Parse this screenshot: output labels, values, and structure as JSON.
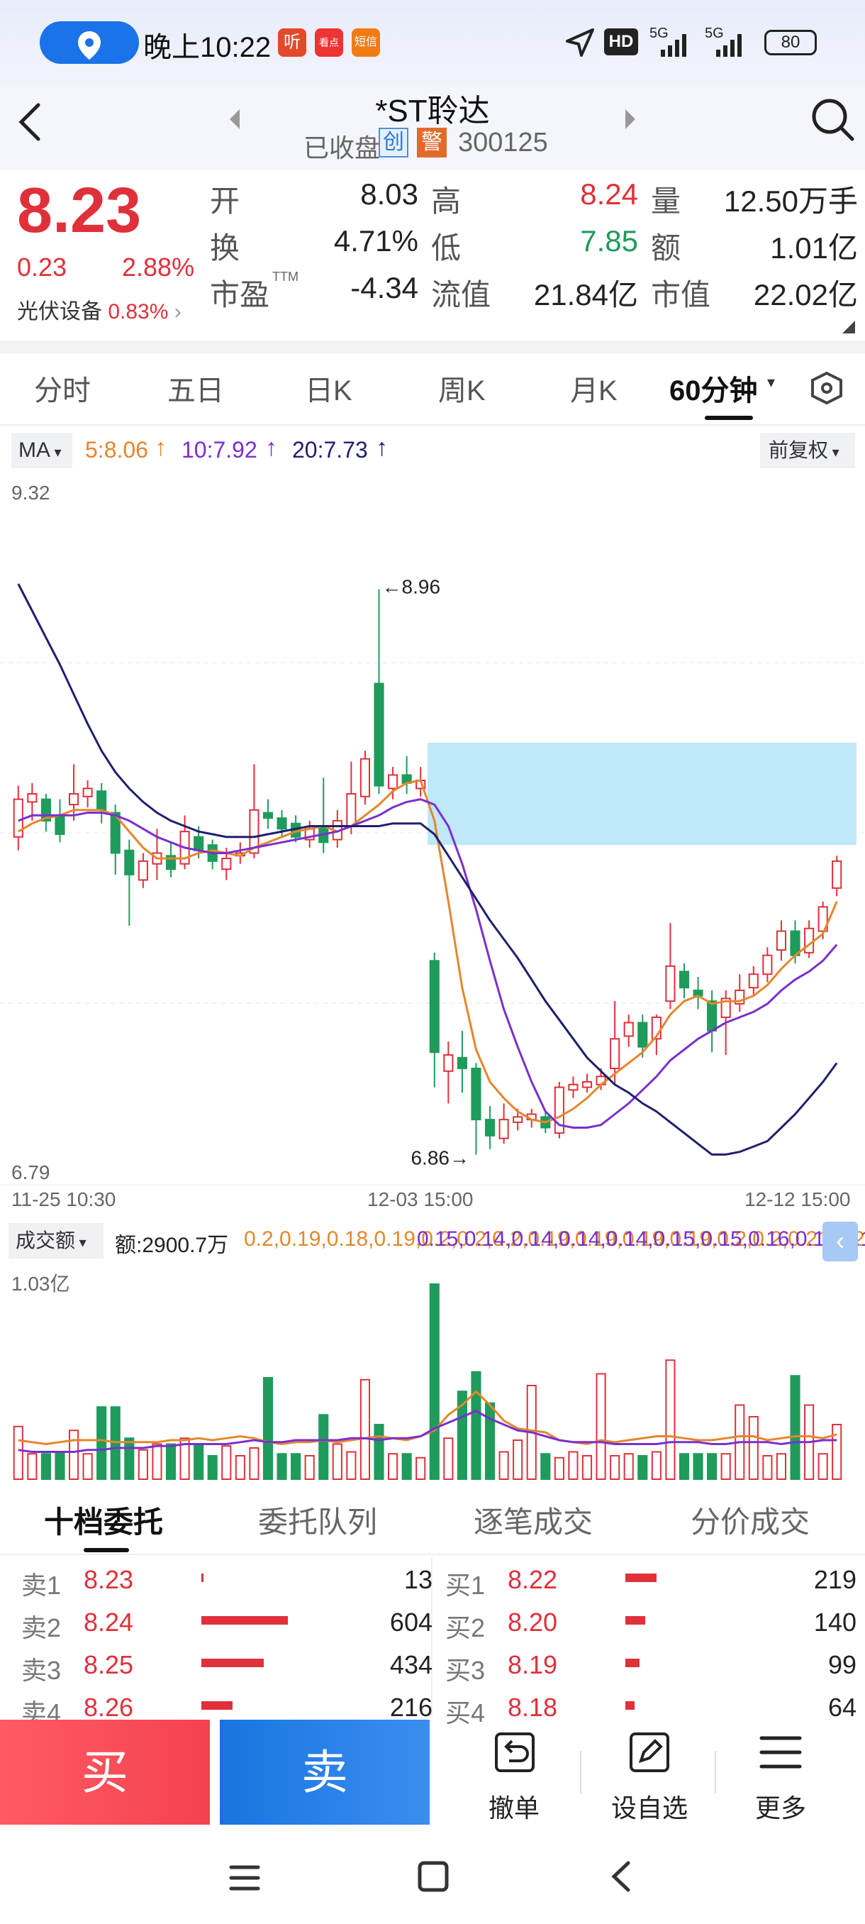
{
  "status": {
    "time": "晚上10:22",
    "hd": "HD",
    "net1": "5G",
    "net2": "5G",
    "battery": "80",
    "app_badges": [
      "听",
      "看点",
      "短信"
    ]
  },
  "header": {
    "title": "*ST聆达",
    "market_state": "已收盘",
    "tag_chuang": "创",
    "tag_warn": "警",
    "code": "300125"
  },
  "quote": {
    "price": "8.23",
    "change": "0.23",
    "change_pct": "2.88%",
    "sector_name": "光伏设备",
    "sector_pct": "0.83%",
    "rows": [
      {
        "l1": "开",
        "v1": "8.03",
        "l2": "高",
        "v2": "8.24",
        "l3": "量",
        "v3": "12.50万手"
      },
      {
        "l1": "换",
        "v1": "4.71%",
        "l2": "低",
        "v2": "7.85",
        "l3": "额",
        "v3": "1.01亿"
      },
      {
        "l1": "市盈",
        "sup": "TTM",
        "v1": "-4.34",
        "l2": "流值",
        "v2": "21.84亿",
        "l3": "市值",
        "v3": "22.02亿"
      }
    ]
  },
  "tabs": [
    "分时",
    "五日",
    "日K",
    "周K",
    "月K",
    "60分钟"
  ],
  "active_tab": "60分钟",
  "ma": {
    "label": "MA",
    "ma5": "5:8.06",
    "ma10": "10:7.92",
    "ma20": "20:7.73",
    "adjust": "前复权"
  },
  "chart_data": {
    "type": "candlestick",
    "interval": "60分钟",
    "ylim": [
      6.79,
      9.32
    ],
    "y_max_label": "9.32",
    "y_min_label": "6.79",
    "high_marker": "8.96",
    "low_marker": "6.86",
    "x_labels": [
      "11-25 10:30",
      "12-03 15:00",
      "12-12 15:00"
    ],
    "candles": [
      {
        "o": 8.04,
        "c": 8.18,
        "h": 8.23,
        "l": 7.99
      },
      {
        "o": 8.17,
        "c": 8.2,
        "h": 8.24,
        "l": 8.1
      },
      {
        "o": 8.18,
        "c": 8.1,
        "h": 8.2,
        "l": 8.06
      },
      {
        "o": 8.12,
        "c": 8.05,
        "h": 8.18,
        "l": 8.02
      },
      {
        "o": 8.16,
        "c": 8.2,
        "h": 8.31,
        "l": 8.1
      },
      {
        "o": 8.19,
        "c": 8.22,
        "h": 8.25,
        "l": 8.15
      },
      {
        "o": 8.21,
        "c": 8.14,
        "h": 8.24,
        "l": 8.09
      },
      {
        "o": 8.13,
        "c": 7.98,
        "h": 8.16,
        "l": 7.9
      },
      {
        "o": 7.99,
        "c": 7.9,
        "h": 8.03,
        "l": 7.71
      },
      {
        "o": 7.88,
        "c": 7.95,
        "h": 7.98,
        "l": 7.85
      },
      {
        "o": 7.94,
        "c": 7.98,
        "h": 8.07,
        "l": 7.88
      },
      {
        "o": 7.97,
        "c": 7.92,
        "h": 8.02,
        "l": 7.89
      },
      {
        "o": 7.94,
        "c": 8.06,
        "h": 8.12,
        "l": 7.92
      },
      {
        "o": 8.04,
        "c": 7.99,
        "h": 8.08,
        "l": 7.96
      },
      {
        "o": 8.01,
        "c": 7.95,
        "h": 8.03,
        "l": 7.92
      },
      {
        "o": 7.92,
        "c": 7.96,
        "h": 8.0,
        "l": 7.88
      },
      {
        "o": 7.97,
        "c": 7.98,
        "h": 8.02,
        "l": 7.94
      },
      {
        "o": 7.98,
        "c": 8.14,
        "h": 8.31,
        "l": 7.96
      },
      {
        "o": 8.13,
        "c": 8.11,
        "h": 8.18,
        "l": 8.07
      },
      {
        "o": 8.11,
        "c": 8.07,
        "h": 8.14,
        "l": 8.04
      },
      {
        "o": 8.09,
        "c": 8.04,
        "h": 8.12,
        "l": 8.02
      },
      {
        "o": 8.03,
        "c": 8.07,
        "h": 8.1,
        "l": 8.0
      },
      {
        "o": 8.08,
        "c": 8.02,
        "h": 8.26,
        "l": 7.98
      },
      {
        "o": 8.03,
        "c": 8.1,
        "h": 8.14,
        "l": 8.0
      },
      {
        "o": 8.08,
        "c": 8.2,
        "h": 8.32,
        "l": 8.05
      },
      {
        "o": 8.19,
        "c": 8.33,
        "h": 8.36,
        "l": 8.16
      },
      {
        "o": 8.61,
        "c": 8.23,
        "h": 8.96,
        "l": 8.2
      },
      {
        "o": 8.22,
        "c": 8.27,
        "h": 8.3,
        "l": 8.18
      },
      {
        "o": 8.27,
        "c": 8.24,
        "h": 8.34,
        "l": 8.2
      },
      {
        "o": 8.22,
        "c": 8.25,
        "h": 8.3,
        "l": 8.19
      },
      {
        "o": 7.58,
        "c": 7.24,
        "h": 7.61,
        "l": 7.11
      },
      {
        "o": 7.17,
        "c": 7.23,
        "h": 7.28,
        "l": 7.05
      },
      {
        "o": 7.22,
        "c": 7.18,
        "h": 7.32,
        "l": 7.09
      },
      {
        "o": 7.18,
        "c": 6.99,
        "h": 7.2,
        "l": 6.86
      },
      {
        "o": 6.99,
        "c": 6.93,
        "h": 7.04,
        "l": 6.88
      },
      {
        "o": 6.92,
        "c": 6.99,
        "h": 7.05,
        "l": 6.9
      },
      {
        "o": 6.98,
        "c": 7.0,
        "h": 7.03,
        "l": 6.95
      },
      {
        "o": 6.99,
        "c": 7.01,
        "h": 7.03,
        "l": 6.96
      },
      {
        "o": 7.0,
        "c": 6.96,
        "h": 7.02,
        "l": 6.94
      },
      {
        "o": 6.94,
        "c": 7.11,
        "h": 7.13,
        "l": 6.92
      },
      {
        "o": 7.1,
        "c": 7.12,
        "h": 7.15,
        "l": 7.07
      },
      {
        "o": 7.11,
        "c": 7.13,
        "h": 7.16,
        "l": 7.09
      },
      {
        "o": 7.12,
        "c": 7.15,
        "h": 7.18,
        "l": 7.1
      },
      {
        "o": 7.18,
        "c": 7.29,
        "h": 7.43,
        "l": 7.12
      },
      {
        "o": 7.3,
        "c": 7.35,
        "h": 7.38,
        "l": 7.26
      },
      {
        "o": 7.35,
        "c": 7.26,
        "h": 7.38,
        "l": 7.22
      },
      {
        "o": 7.29,
        "c": 7.37,
        "h": 7.38,
        "l": 7.23
      },
      {
        "o": 7.43,
        "c": 7.56,
        "h": 7.72,
        "l": 7.4
      },
      {
        "o": 7.54,
        "c": 7.48,
        "h": 7.57,
        "l": 7.44
      },
      {
        "o": 7.47,
        "c": 7.45,
        "h": 7.52,
        "l": 7.4
      },
      {
        "o": 7.43,
        "c": 7.32,
        "h": 7.47,
        "l": 7.24
      },
      {
        "o": 7.37,
        "c": 7.44,
        "h": 7.47,
        "l": 7.23
      },
      {
        "o": 7.42,
        "c": 7.47,
        "h": 7.53,
        "l": 7.39
      },
      {
        "o": 7.48,
        "c": 7.53,
        "h": 7.56,
        "l": 7.45
      },
      {
        "o": 7.53,
        "c": 7.6,
        "h": 7.63,
        "l": 7.5
      },
      {
        "o": 7.62,
        "c": 7.69,
        "h": 7.73,
        "l": 7.58
      },
      {
        "o": 7.69,
        "c": 7.6,
        "h": 7.73,
        "l": 7.57
      },
      {
        "o": 7.61,
        "c": 7.7,
        "h": 7.73,
        "l": 7.59
      },
      {
        "o": 7.69,
        "c": 7.78,
        "h": 7.8,
        "l": 7.66
      },
      {
        "o": 7.85,
        "c": 7.95,
        "h": 7.97,
        "l": 7.82
      }
    ],
    "ma_series": [
      {
        "name": "5",
        "color": "#e5862b",
        "values": [
          8.06,
          8.09,
          8.11,
          8.12,
          8.14,
          8.14,
          8.14,
          8.12,
          8.06,
          8.0,
          7.96,
          7.96,
          7.96,
          7.98,
          7.99,
          7.98,
          7.97,
          8.0,
          8.02,
          8.04,
          8.06,
          8.07,
          8.08,
          8.06,
          8.08,
          8.12,
          8.16,
          8.21,
          8.24,
          8.25,
          8.1,
          7.8,
          7.48,
          7.25,
          7.13,
          7.07,
          7.02,
          6.99,
          6.98,
          7.0,
          7.03,
          7.07,
          7.12,
          7.16,
          7.2,
          7.24,
          7.3,
          7.38,
          7.43,
          7.45,
          7.42,
          7.43,
          7.43,
          7.45,
          7.49,
          7.55,
          7.6,
          7.64,
          7.68,
          7.8
        ]
      },
      {
        "name": "10",
        "color": "#7a2fd0",
        "values": [
          8.1,
          8.12,
          8.12,
          8.12,
          8.12,
          8.13,
          8.13,
          8.12,
          8.1,
          8.07,
          8.04,
          8.02,
          8.0,
          7.99,
          7.98,
          7.98,
          7.99,
          8.0,
          8.01,
          8.02,
          8.03,
          8.04,
          8.05,
          8.06,
          8.08,
          8.1,
          8.12,
          8.15,
          8.17,
          8.18,
          8.16,
          8.08,
          7.94,
          7.77,
          7.58,
          7.4,
          7.26,
          7.13,
          7.02,
          6.97,
          6.96,
          6.96,
          6.97,
          7.01,
          7.05,
          7.1,
          7.15,
          7.21,
          7.25,
          7.29,
          7.32,
          7.35,
          7.37,
          7.39,
          7.42,
          7.47,
          7.51,
          7.54,
          7.58,
          7.64
        ]
      },
      {
        "name": "20",
        "color": "#1f1f6e",
        "values": [
          8.98,
          8.88,
          8.78,
          8.68,
          8.57,
          8.46,
          8.36,
          8.28,
          8.22,
          8.17,
          8.13,
          8.1,
          8.08,
          8.06,
          8.05,
          8.04,
          8.04,
          8.04,
          8.05,
          8.06,
          8.07,
          8.08,
          8.08,
          8.08,
          8.08,
          8.08,
          8.08,
          8.09,
          8.09,
          8.09,
          8.05,
          7.97,
          7.89,
          7.81,
          7.73,
          7.66,
          7.59,
          7.51,
          7.43,
          7.36,
          7.29,
          7.22,
          7.17,
          7.12,
          7.09,
          7.05,
          7.02,
          6.98,
          6.94,
          6.9,
          6.86,
          6.86,
          6.87,
          6.89,
          6.91,
          6.96,
          7.01,
          7.07,
          7.13,
          7.2
        ]
      }
    ],
    "highlight_zone": {
      "from_index": 30,
      "y_range": [
        8.01,
        8.39
      ],
      "color": "#bfe8f8"
    }
  },
  "volume": {
    "label": "成交额",
    "amount": "额:2900.7万",
    "ma5": [
      0.2,
      0.19,
      0.18,
      0.19,
      0.2,
      0.2,
      0.2,
      0.19,
      0.19,
      0.19,
      0.19,
      0.2,
      0.2,
      0.21,
      0.2,
      0.21,
      0.22,
      0.21,
      0.19,
      0.18,
      0.19,
      0.19,
      0.2,
      0.19,
      0.2,
      0.21,
      0.22,
      0.21,
      0.2,
      0.22,
      0.25,
      0.33,
      0.38,
      0.45,
      0.38,
      0.3,
      0.26,
      0.25,
      0.24,
      0.2,
      0.19,
      0.18,
      0.2,
      0.19,
      0.2,
      0.21,
      0.22,
      0.22,
      0.21,
      0.2,
      0.2,
      0.21,
      0.22,
      0.22,
      0.2,
      0.21,
      0.22,
      0.22,
      0.21,
      0.23
    ],
    "ma10": [
      0.15,
      0.14,
      0.14,
      0.14,
      0.14,
      0.15,
      0.15,
      0.16,
      0.16,
      0.16,
      0.17,
      0.17,
      0.18,
      0.18,
      0.18,
      0.18,
      0.19,
      0.2,
      0.19,
      0.19,
      0.2,
      0.2,
      0.2,
      0.2,
      0.21,
      0.21,
      0.2,
      0.21,
      0.21,
      0.22,
      0.26,
      0.29,
      0.32,
      0.35,
      0.31,
      0.28,
      0.25,
      0.24,
      0.22,
      0.2,
      0.19,
      0.19,
      0.19,
      0.18,
      0.18,
      0.18,
      0.18,
      0.19,
      0.19,
      0.19,
      0.18,
      0.18,
      0.19,
      0.19,
      0.19,
      0.18,
      0.19,
      0.19,
      0.2,
      0.2
    ],
    "max_label": "1.03亿",
    "bars": [
      0.27,
      0.13,
      0.13,
      0.14,
      0.25,
      0.13,
      0.37,
      0.37,
      0.21,
      0.15,
      0.18,
      0.18,
      0.21,
      0.18,
      0.12,
      0.17,
      0.12,
      0.16,
      0.52,
      0.13,
      0.13,
      0.12,
      0.33,
      0.18,
      0.14,
      0.51,
      0.28,
      0.13,
      0.13,
      0.11,
      1.0,
      0.21,
      0.45,
      0.55,
      0.39,
      0.14,
      0.2,
      0.48,
      0.13,
      0.11,
      0.14,
      0.12,
      0.54,
      0.12,
      0.13,
      0.12,
      0.14,
      0.61,
      0.13,
      0.13,
      0.13,
      0.13,
      0.38,
      0.32,
      0.12,
      0.13,
      0.53,
      0.38,
      0.13,
      0.28
    ]
  },
  "bottom_tabs": [
    "十档委托",
    "委托队列",
    "逐笔成交",
    "分价成交"
  ],
  "active_bottom_tab": "十档委托",
  "order_book": {
    "sell": [
      {
        "label": "卖1",
        "price": "8.23",
        "vol": "13",
        "bar": 0.02
      },
      {
        "label": "卖2",
        "price": "8.24",
        "vol": "604",
        "bar": 1.0
      },
      {
        "label": "卖3",
        "price": "8.25",
        "vol": "434",
        "bar": 0.72
      },
      {
        "label": "卖4",
        "price": "8.26",
        "vol": "216",
        "bar": 0.36
      }
    ],
    "buy": [
      {
        "label": "买1",
        "price": "8.22",
        "vol": "219",
        "bar": 0.36
      },
      {
        "label": "买2",
        "price": "8.20",
        "vol": "140",
        "bar": 0.23
      },
      {
        "label": "买3",
        "price": "8.19",
        "vol": "99",
        "bar": 0.16
      },
      {
        "label": "买4",
        "price": "8.18",
        "vol": "64",
        "bar": 0.11
      }
    ]
  },
  "actions": {
    "buy": "买",
    "sell": "卖",
    "cancel": "撤单",
    "watch": "设自选",
    "more": "更多"
  },
  "colors": {
    "up": "#e0303a",
    "down": "#1f9b5c",
    "accent": "#1a66d8"
  }
}
